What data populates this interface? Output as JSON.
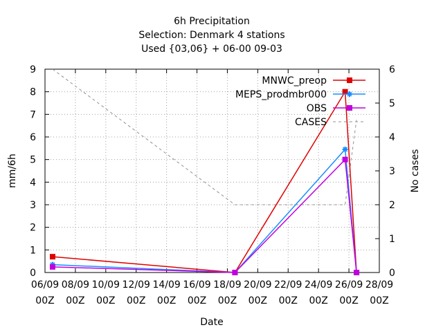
{
  "chart_data": {
    "type": "line",
    "title_lines": [
      "6h Precipitation",
      "Selection: Denmark      4 stations",
      "Used {03,06} + 06-00 09-03"
    ],
    "xlabel": "Date",
    "ylabel": "mm/6h",
    "y2label": "No cases",
    "xlim": [
      "2023-09-06T00:00",
      "2023-09-28T00:00"
    ],
    "ylim": [
      0,
      9
    ],
    "y2lim": [
      0,
      6
    ],
    "x_tick_labels": [
      [
        "06/09",
        "00Z"
      ],
      [
        "08/09",
        "00Z"
      ],
      [
        "10/09",
        "00Z"
      ],
      [
        "12/09",
        "00Z"
      ],
      [
        "14/09",
        "00Z"
      ],
      [
        "16/09",
        "00Z"
      ],
      [
        "18/09",
        "00Z"
      ],
      [
        "20/09",
        "00Z"
      ],
      [
        "22/09",
        "00Z"
      ],
      [
        "24/09",
        "00Z"
      ],
      [
        "26/09",
        "00Z"
      ],
      [
        "28/09",
        "00Z"
      ]
    ],
    "y_ticks": [
      0,
      1,
      2,
      3,
      4,
      5,
      6,
      7,
      8,
      9
    ],
    "y2_ticks": [
      0,
      1,
      2,
      3,
      4,
      5,
      6
    ],
    "grid": true,
    "legend_position": "top-right",
    "series": [
      {
        "name": "MNWC_preop",
        "color": "#e00000",
        "axis": "y",
        "marker": "square",
        "x": [
          "2023-09-06T12:00",
          "2023-09-18T12:00",
          "2023-09-25T18:00",
          "2023-09-26T12:00"
        ],
        "y": [
          0.7,
          0.0,
          8.0,
          0.0
        ]
      },
      {
        "name": "MEPS_prodmbr000",
        "color": "#1a8cff",
        "axis": "y",
        "marker": "star",
        "x": [
          "2023-09-06T12:00",
          "2023-09-18T12:00",
          "2023-09-25T18:00",
          "2023-09-26T12:00"
        ],
        "y": [
          0.35,
          0.0,
          5.45,
          0.0
        ]
      },
      {
        "name": "OBS",
        "color": "#c000e0",
        "axis": "y",
        "marker": "square",
        "x": [
          "2023-09-06T12:00",
          "2023-09-18T12:00",
          "2023-09-25T18:00",
          "2023-09-26T12:00"
        ],
        "y": [
          0.25,
          0.0,
          5.0,
          0.0
        ]
      },
      {
        "name": "CASES",
        "color": "#909090",
        "axis": "y2",
        "dashed": true,
        "x": [
          "2023-09-06T12:00",
          "2023-09-18T12:00",
          "2023-09-25T18:00",
          "2023-09-26T12:00"
        ],
        "y": [
          6,
          2,
          2,
          4.5
        ]
      }
    ]
  }
}
